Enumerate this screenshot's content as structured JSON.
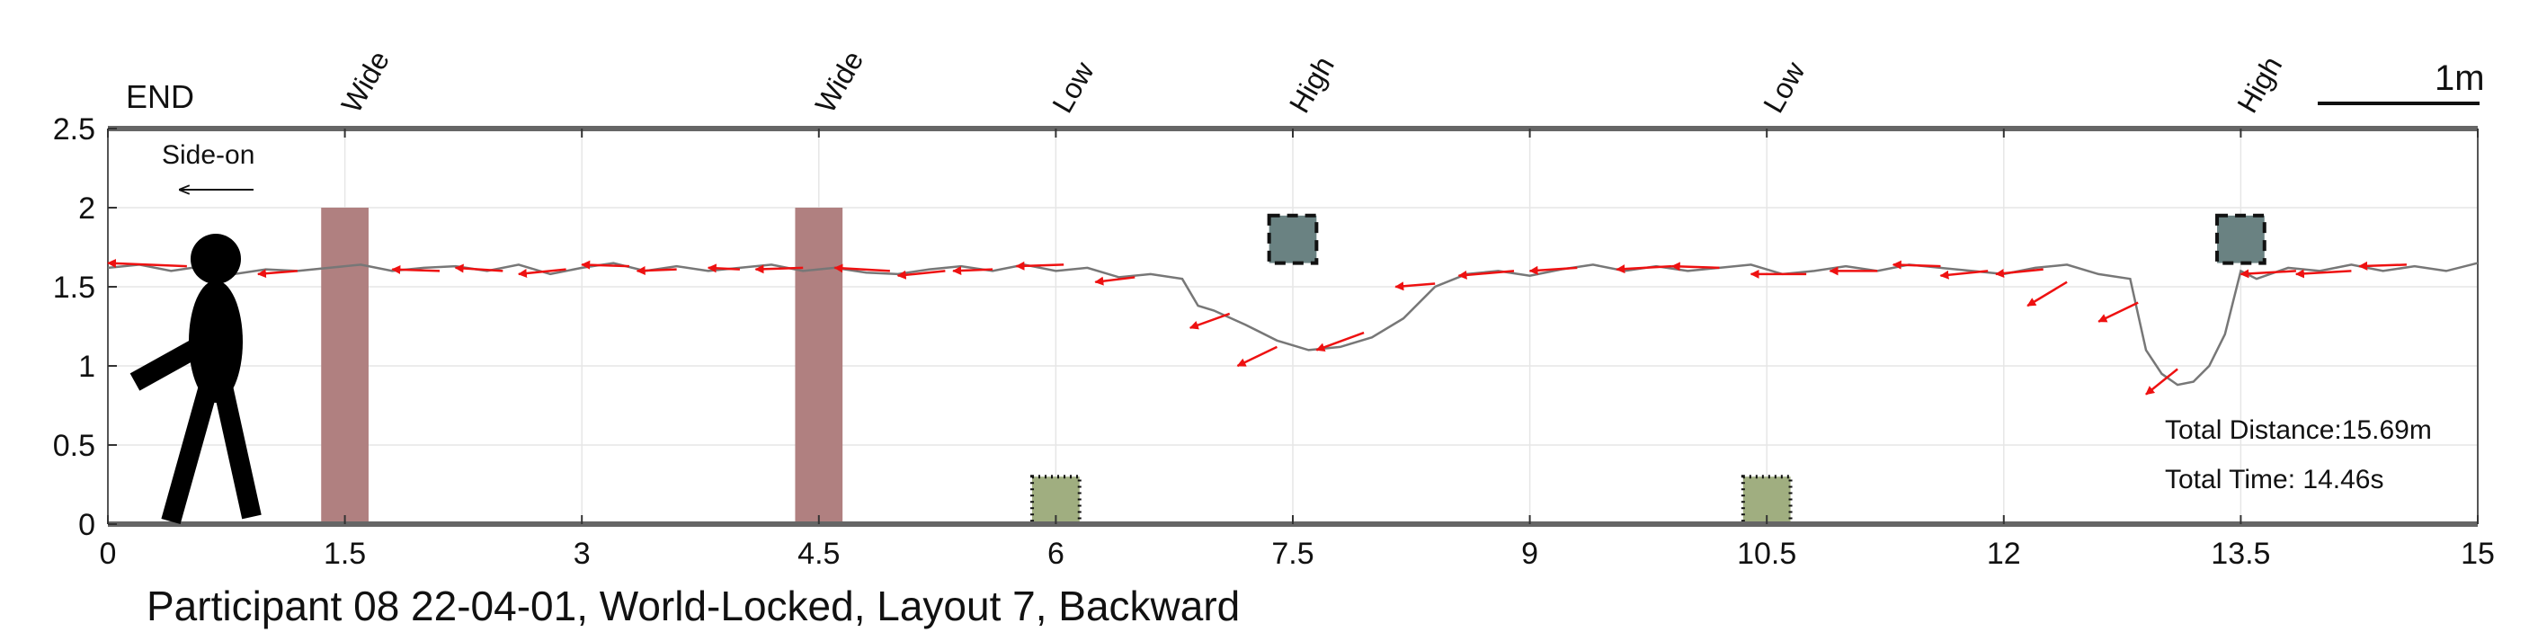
{
  "chart_data": {
    "type": "line",
    "title": "Participant 08 22-04-01, World-Locked, Layout 7, Backward",
    "xlim": [
      0,
      15
    ],
    "ylim": [
      0,
      2.5
    ],
    "xticks": [
      "0",
      "1.5",
      "3",
      "4.5",
      "6",
      "7.5",
      "9",
      "10.5",
      "12",
      "13.5",
      "15"
    ],
    "xtick_values": [
      0,
      1.5,
      3,
      4.5,
      6,
      7.5,
      9,
      10.5,
      12,
      13.5,
      15
    ],
    "yticks": [
      "0",
      "0.5",
      "1",
      "1.5",
      "2",
      "2.5"
    ],
    "ytick_values": [
      0,
      0.5,
      1,
      1.5,
      2,
      2.5
    ],
    "grid": true,
    "end_label": "END",
    "direction_label": "Side-on",
    "scale_label": "1m",
    "scale_length": 1,
    "stats": {
      "distance": "Total Distance:15.69m",
      "time": "Total Time: 14.46s"
    },
    "obstacle_labels": [
      {
        "text": "Wide",
        "x": 1.5
      },
      {
        "text": "Wide",
        "x": 4.5
      },
      {
        "text": "Low",
        "x": 6.0
      },
      {
        "text": "High",
        "x": 7.5
      },
      {
        "text": "Low",
        "x": 10.5
      },
      {
        "text": "High",
        "x": 13.5
      }
    ],
    "obstacles": [
      {
        "type": "wide",
        "x0": 1.35,
        "x1": 1.65,
        "y0": 0,
        "y1": 2.0
      },
      {
        "type": "wide",
        "x0": 4.35,
        "x1": 4.65,
        "y0": 0,
        "y1": 2.0
      },
      {
        "type": "low",
        "x0": 5.85,
        "x1": 6.15,
        "y0": 0,
        "y1": 0.3
      },
      {
        "type": "high",
        "x0": 7.35,
        "x1": 7.65,
        "y0": 1.65,
        "y1": 1.95
      },
      {
        "type": "low",
        "x0": 10.35,
        "x1": 10.65,
        "y0": 0,
        "y1": 0.3
      },
      {
        "type": "high",
        "x0": 13.35,
        "x1": 13.65,
        "y0": 1.65,
        "y1": 1.95
      }
    ],
    "colors": {
      "wide": "#b08080",
      "low": "#a0ae80",
      "high": "#6a8282",
      "path": "#777777",
      "arrow": "#ee1111",
      "axis": "#666666"
    },
    "series": [
      {
        "x": [
          0.0,
          0.2,
          0.4,
          0.6,
          0.8,
          1.0,
          1.2,
          1.4,
          1.6,
          1.8,
          2.0,
          2.2,
          2.4,
          2.6,
          2.8,
          3.0,
          3.2,
          3.4,
          3.6,
          3.8,
          4.0,
          4.2,
          4.4,
          4.6,
          4.8,
          5.0,
          5.2,
          5.4,
          5.6,
          5.8,
          6.0,
          6.2,
          6.4,
          6.6,
          6.8,
          6.9,
          7.0,
          7.2,
          7.4,
          7.6,
          7.8,
          8.0,
          8.2,
          8.4,
          8.6,
          8.8,
          9.0,
          9.2,
          9.4,
          9.6,
          9.8,
          10.0,
          10.2,
          10.4,
          10.6,
          10.8,
          11.0,
          11.2,
          11.4,
          11.6,
          11.8,
          12.0,
          12.2,
          12.4,
          12.6,
          12.8,
          12.9,
          13.0,
          13.1,
          13.2,
          13.3,
          13.4,
          13.45,
          13.5,
          13.6,
          13.8,
          14.0,
          14.2,
          14.4,
          14.6,
          14.8,
          15.0
        ],
        "y": [
          1.62,
          1.64,
          1.6,
          1.63,
          1.58,
          1.61,
          1.6,
          1.62,
          1.64,
          1.6,
          1.62,
          1.63,
          1.6,
          1.64,
          1.58,
          1.62,
          1.65,
          1.6,
          1.63,
          1.6,
          1.62,
          1.64,
          1.6,
          1.62,
          1.59,
          1.58,
          1.61,
          1.63,
          1.6,
          1.64,
          1.6,
          1.62,
          1.56,
          1.58,
          1.55,
          1.38,
          1.35,
          1.26,
          1.16,
          1.1,
          1.12,
          1.18,
          1.3,
          1.5,
          1.58,
          1.6,
          1.57,
          1.61,
          1.64,
          1.6,
          1.63,
          1.6,
          1.62,
          1.64,
          1.58,
          1.6,
          1.63,
          1.6,
          1.64,
          1.62,
          1.6,
          1.58,
          1.62,
          1.64,
          1.58,
          1.55,
          1.1,
          0.95,
          0.88,
          0.9,
          1.0,
          1.2,
          1.4,
          1.6,
          1.55,
          1.62,
          1.6,
          1.64,
          1.6,
          1.63,
          1.6,
          1.65
        ]
      }
    ],
    "arrows": [
      [
        0.5,
        1.63,
        0.0,
        1.65
      ],
      [
        1.2,
        1.6,
        0.95,
        1.58
      ],
      [
        2.1,
        1.6,
        1.8,
        1.61
      ],
      [
        2.5,
        1.6,
        2.2,
        1.62
      ],
      [
        2.9,
        1.61,
        2.6,
        1.58
      ],
      [
        3.3,
        1.63,
        3.0,
        1.64
      ],
      [
        3.6,
        1.61,
        3.35,
        1.6
      ],
      [
        4.0,
        1.61,
        3.8,
        1.62
      ],
      [
        4.4,
        1.62,
        4.1,
        1.61
      ],
      [
        4.95,
        1.6,
        4.6,
        1.62
      ],
      [
        5.3,
        1.6,
        5.0,
        1.57
      ],
      [
        5.6,
        1.61,
        5.35,
        1.6
      ],
      [
        6.05,
        1.64,
        5.75,
        1.63
      ],
      [
        6.5,
        1.56,
        6.25,
        1.53
      ],
      [
        7.1,
        1.33,
        6.85,
        1.24
      ],
      [
        7.4,
        1.12,
        7.15,
        1.0
      ],
      [
        7.95,
        1.21,
        7.65,
        1.1
      ],
      [
        8.4,
        1.52,
        8.15,
        1.5
      ],
      [
        8.9,
        1.6,
        8.55,
        1.57
      ],
      [
        9.3,
        1.62,
        9.0,
        1.6
      ],
      [
        9.9,
        1.63,
        9.55,
        1.61
      ],
      [
        10.2,
        1.62,
        9.9,
        1.63
      ],
      [
        10.75,
        1.58,
        10.4,
        1.58
      ],
      [
        11.2,
        1.6,
        10.9,
        1.6
      ],
      [
        11.6,
        1.63,
        11.3,
        1.64
      ],
      [
        11.9,
        1.6,
        11.6,
        1.57
      ],
      [
        12.25,
        1.61,
        11.95,
        1.58
      ],
      [
        12.4,
        1.53,
        12.15,
        1.38
      ],
      [
        12.85,
        1.4,
        12.6,
        1.28
      ],
      [
        13.1,
        0.98,
        12.9,
        0.82
      ],
      [
        13.85,
        1.6,
        13.5,
        1.58
      ],
      [
        14.2,
        1.6,
        13.85,
        1.58
      ],
      [
        14.55,
        1.64,
        14.25,
        1.63
      ]
    ]
  }
}
